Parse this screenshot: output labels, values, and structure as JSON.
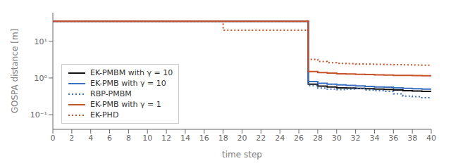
{
  "chart_data": {
    "type": "line",
    "xlabel": "time step",
    "ylabel": "GOSPA distance [m]",
    "log": "y",
    "legend": "lower left",
    "xlim": [
      0,
      40
    ],
    "xticks": [
      0,
      2,
      4,
      6,
      8,
      10,
      12,
      14,
      16,
      18,
      20,
      22,
      24,
      26,
      28,
      30,
      32,
      34,
      36,
      38,
      40
    ],
    "ylim": [
      0.04,
      60
    ],
    "yticks": [
      {
        "value": 0.1,
        "label": "10⁻¹"
      },
      {
        "value": 1,
        "label": "10⁰"
      },
      {
        "value": 10,
        "label": "10¹"
      }
    ],
    "x": [
      0,
      1,
      2,
      3,
      4,
      5,
      6,
      7,
      8,
      9,
      10,
      11,
      12,
      13,
      14,
      15,
      16,
      17,
      18,
      19,
      20,
      21,
      22,
      23,
      24,
      25,
      26,
      27,
      28,
      29,
      30,
      31,
      32,
      33,
      34,
      35,
      36,
      37,
      38,
      39,
      40
    ],
    "series": [
      {
        "name": "EK-PMBM with γ = 10",
        "color": "#111111",
        "line_style": "solid",
        "values": [
          35,
          35,
          35,
          35,
          35,
          35,
          35,
          35,
          35,
          35,
          35,
          35,
          35,
          35,
          35,
          35,
          35,
          35,
          35,
          35,
          35,
          35,
          35,
          35,
          35,
          35,
          35,
          0.68,
          0.6,
          0.57,
          0.54,
          0.53,
          0.52,
          0.51,
          0.5,
          0.49,
          0.47,
          0.45,
          0.44,
          0.43,
          0.43
        ]
      },
      {
        "name": "EK-PMB with γ = 10",
        "color": "#3B6FBF",
        "line_style": "solid",
        "values": [
          35,
          35,
          35,
          35,
          35,
          35,
          35,
          35,
          35,
          35,
          35,
          35,
          35,
          35,
          35,
          35,
          35,
          35,
          35,
          35,
          35,
          35,
          35,
          35,
          35,
          35,
          35,
          0.8,
          0.72,
          0.68,
          0.65,
          0.63,
          0.61,
          0.59,
          0.57,
          0.56,
          0.54,
          0.52,
          0.51,
          0.5,
          0.5
        ]
      },
      {
        "name": "RBP-PMBM",
        "color": "#3B6FBF",
        "line_style": "dotted",
        "values": [
          35,
          35,
          35,
          35,
          35,
          35,
          35,
          35,
          35,
          35,
          35,
          35,
          35,
          35,
          35,
          35,
          35,
          35,
          35,
          35,
          35,
          35,
          35,
          35,
          35,
          35,
          35,
          0.62,
          0.53,
          0.5,
          0.48,
          0.5,
          0.52,
          0.47,
          0.45,
          0.43,
          0.37,
          0.32,
          0.31,
          0.29,
          0.28
        ]
      },
      {
        "name": "EK-PMB with γ = 1",
        "color": "#C8522A",
        "line_style": "solid",
        "values": [
          35,
          35,
          35,
          35,
          35,
          35,
          35,
          35,
          35,
          35,
          35,
          35,
          35,
          35,
          35,
          35,
          35,
          35,
          35,
          35,
          35,
          35,
          35,
          35,
          35,
          35,
          35,
          1.5,
          1.4,
          1.35,
          1.3,
          1.28,
          1.26,
          1.24,
          1.22,
          1.2,
          1.18,
          1.17,
          1.16,
          1.15,
          1.14
        ]
      },
      {
        "name": "EK-PHD",
        "color": "#C8522A",
        "line_style": "dotted",
        "values": [
          35,
          35,
          35,
          35,
          35,
          35,
          35,
          35,
          35,
          35,
          35,
          35,
          35,
          35,
          35,
          35,
          35,
          35,
          20,
          20,
          20,
          20,
          20,
          20,
          20,
          20,
          20,
          3.2,
          2.8,
          2.6,
          2.5,
          2.45,
          2.4,
          2.38,
          2.35,
          2.32,
          2.3,
          2.28,
          2.26,
          2.24,
          2.22
        ]
      }
    ]
  }
}
